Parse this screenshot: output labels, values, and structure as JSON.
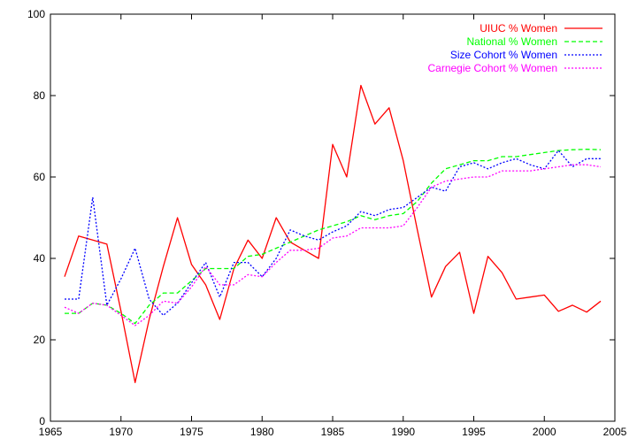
{
  "chart_data": {
    "type": "line",
    "title": "",
    "xlabel": "",
    "ylabel": "",
    "xlim": [
      1965,
      2005
    ],
    "ylim": [
      0,
      100
    ],
    "xticks": [
      1965,
      1970,
      1975,
      1980,
      1985,
      1990,
      1995,
      2000,
      2005
    ],
    "yticks": [
      0,
      20,
      40,
      60,
      80,
      100
    ],
    "grid": false,
    "legend_position": "top-right",
    "x": [
      1966,
      1967,
      1968,
      1969,
      1970,
      1971,
      1972,
      1973,
      1974,
      1975,
      1976,
      1977,
      1978,
      1979,
      1980,
      1981,
      1982,
      1983,
      1984,
      1985,
      1986,
      1987,
      1988,
      1989,
      1990,
      1991,
      1992,
      1993,
      1994,
      1995,
      1996,
      1997,
      1998,
      1999,
      2000,
      2001,
      2002,
      2003,
      2004
    ],
    "series": [
      {
        "name": "UIUC % Women",
        "color": "#ff0000",
        "dash": "solid",
        "values": [
          35.5,
          45.5,
          44.5,
          43.5,
          27.0,
          9.5,
          25.0,
          38.0,
          50.0,
          38.5,
          33.5,
          25.0,
          37.5,
          44.5,
          40.0,
          50.0,
          44.0,
          42.0,
          40.0,
          68.0,
          60.0,
          82.5,
          73.0,
          77.0,
          64.0,
          47.0,
          30.5,
          38.0,
          41.5,
          26.5,
          40.5,
          36.5,
          30.0,
          30.5,
          31.0,
          27.0,
          28.5,
          26.8,
          29.5
        ]
      },
      {
        "name": "National % Women",
        "color": "#00ff00",
        "dash": "dashed",
        "values": [
          26.5,
          26.5,
          29.0,
          28.5,
          26.5,
          24.0,
          28.5,
          31.5,
          31.5,
          34.5,
          37.5,
          37.5,
          37.5,
          40.5,
          41.0,
          42.5,
          44.0,
          45.5,
          47.0,
          48.0,
          49.0,
          50.5,
          49.5,
          50.5,
          51.0,
          54.0,
          58.5,
          62.0,
          63.0,
          64.0,
          64.0,
          65.0,
          65.0,
          65.5,
          66.0,
          66.5,
          66.7,
          66.8,
          66.7
        ]
      },
      {
        "name": "Size Cohort % Women",
        "color": "#0000ff",
        "dash": "dotted",
        "values": [
          30.0,
          30.0,
          55.0,
          28.5,
          35.0,
          42.5,
          30.0,
          26.0,
          29.0,
          34.0,
          39.0,
          30.5,
          39.0,
          39.0,
          35.5,
          40.0,
          47.0,
          45.5,
          44.5,
          46.5,
          48.0,
          51.5,
          50.5,
          52.0,
          52.5,
          55.0,
          57.5,
          56.5,
          62.5,
          63.5,
          62.0,
          63.5,
          64.5,
          63.0,
          62.0,
          66.5,
          62.5,
          64.5,
          64.5
        ]
      },
      {
        "name": "Carnegie Cohort % Women",
        "color": "#ff00ff",
        "dash": "dotted",
        "values": [
          28.0,
          26.5,
          29.0,
          28.5,
          26.0,
          23.5,
          26.0,
          29.5,
          29.0,
          33.0,
          38.0,
          33.5,
          33.5,
          36.0,
          35.5,
          39.0,
          42.0,
          42.0,
          42.5,
          45.0,
          45.5,
          47.5,
          47.5,
          47.5,
          48.0,
          52.5,
          57.5,
          59.0,
          59.5,
          60.0,
          60.0,
          61.5,
          61.5,
          61.5,
          62.0,
          62.5,
          63.0,
          63.0,
          62.5
        ]
      }
    ]
  }
}
